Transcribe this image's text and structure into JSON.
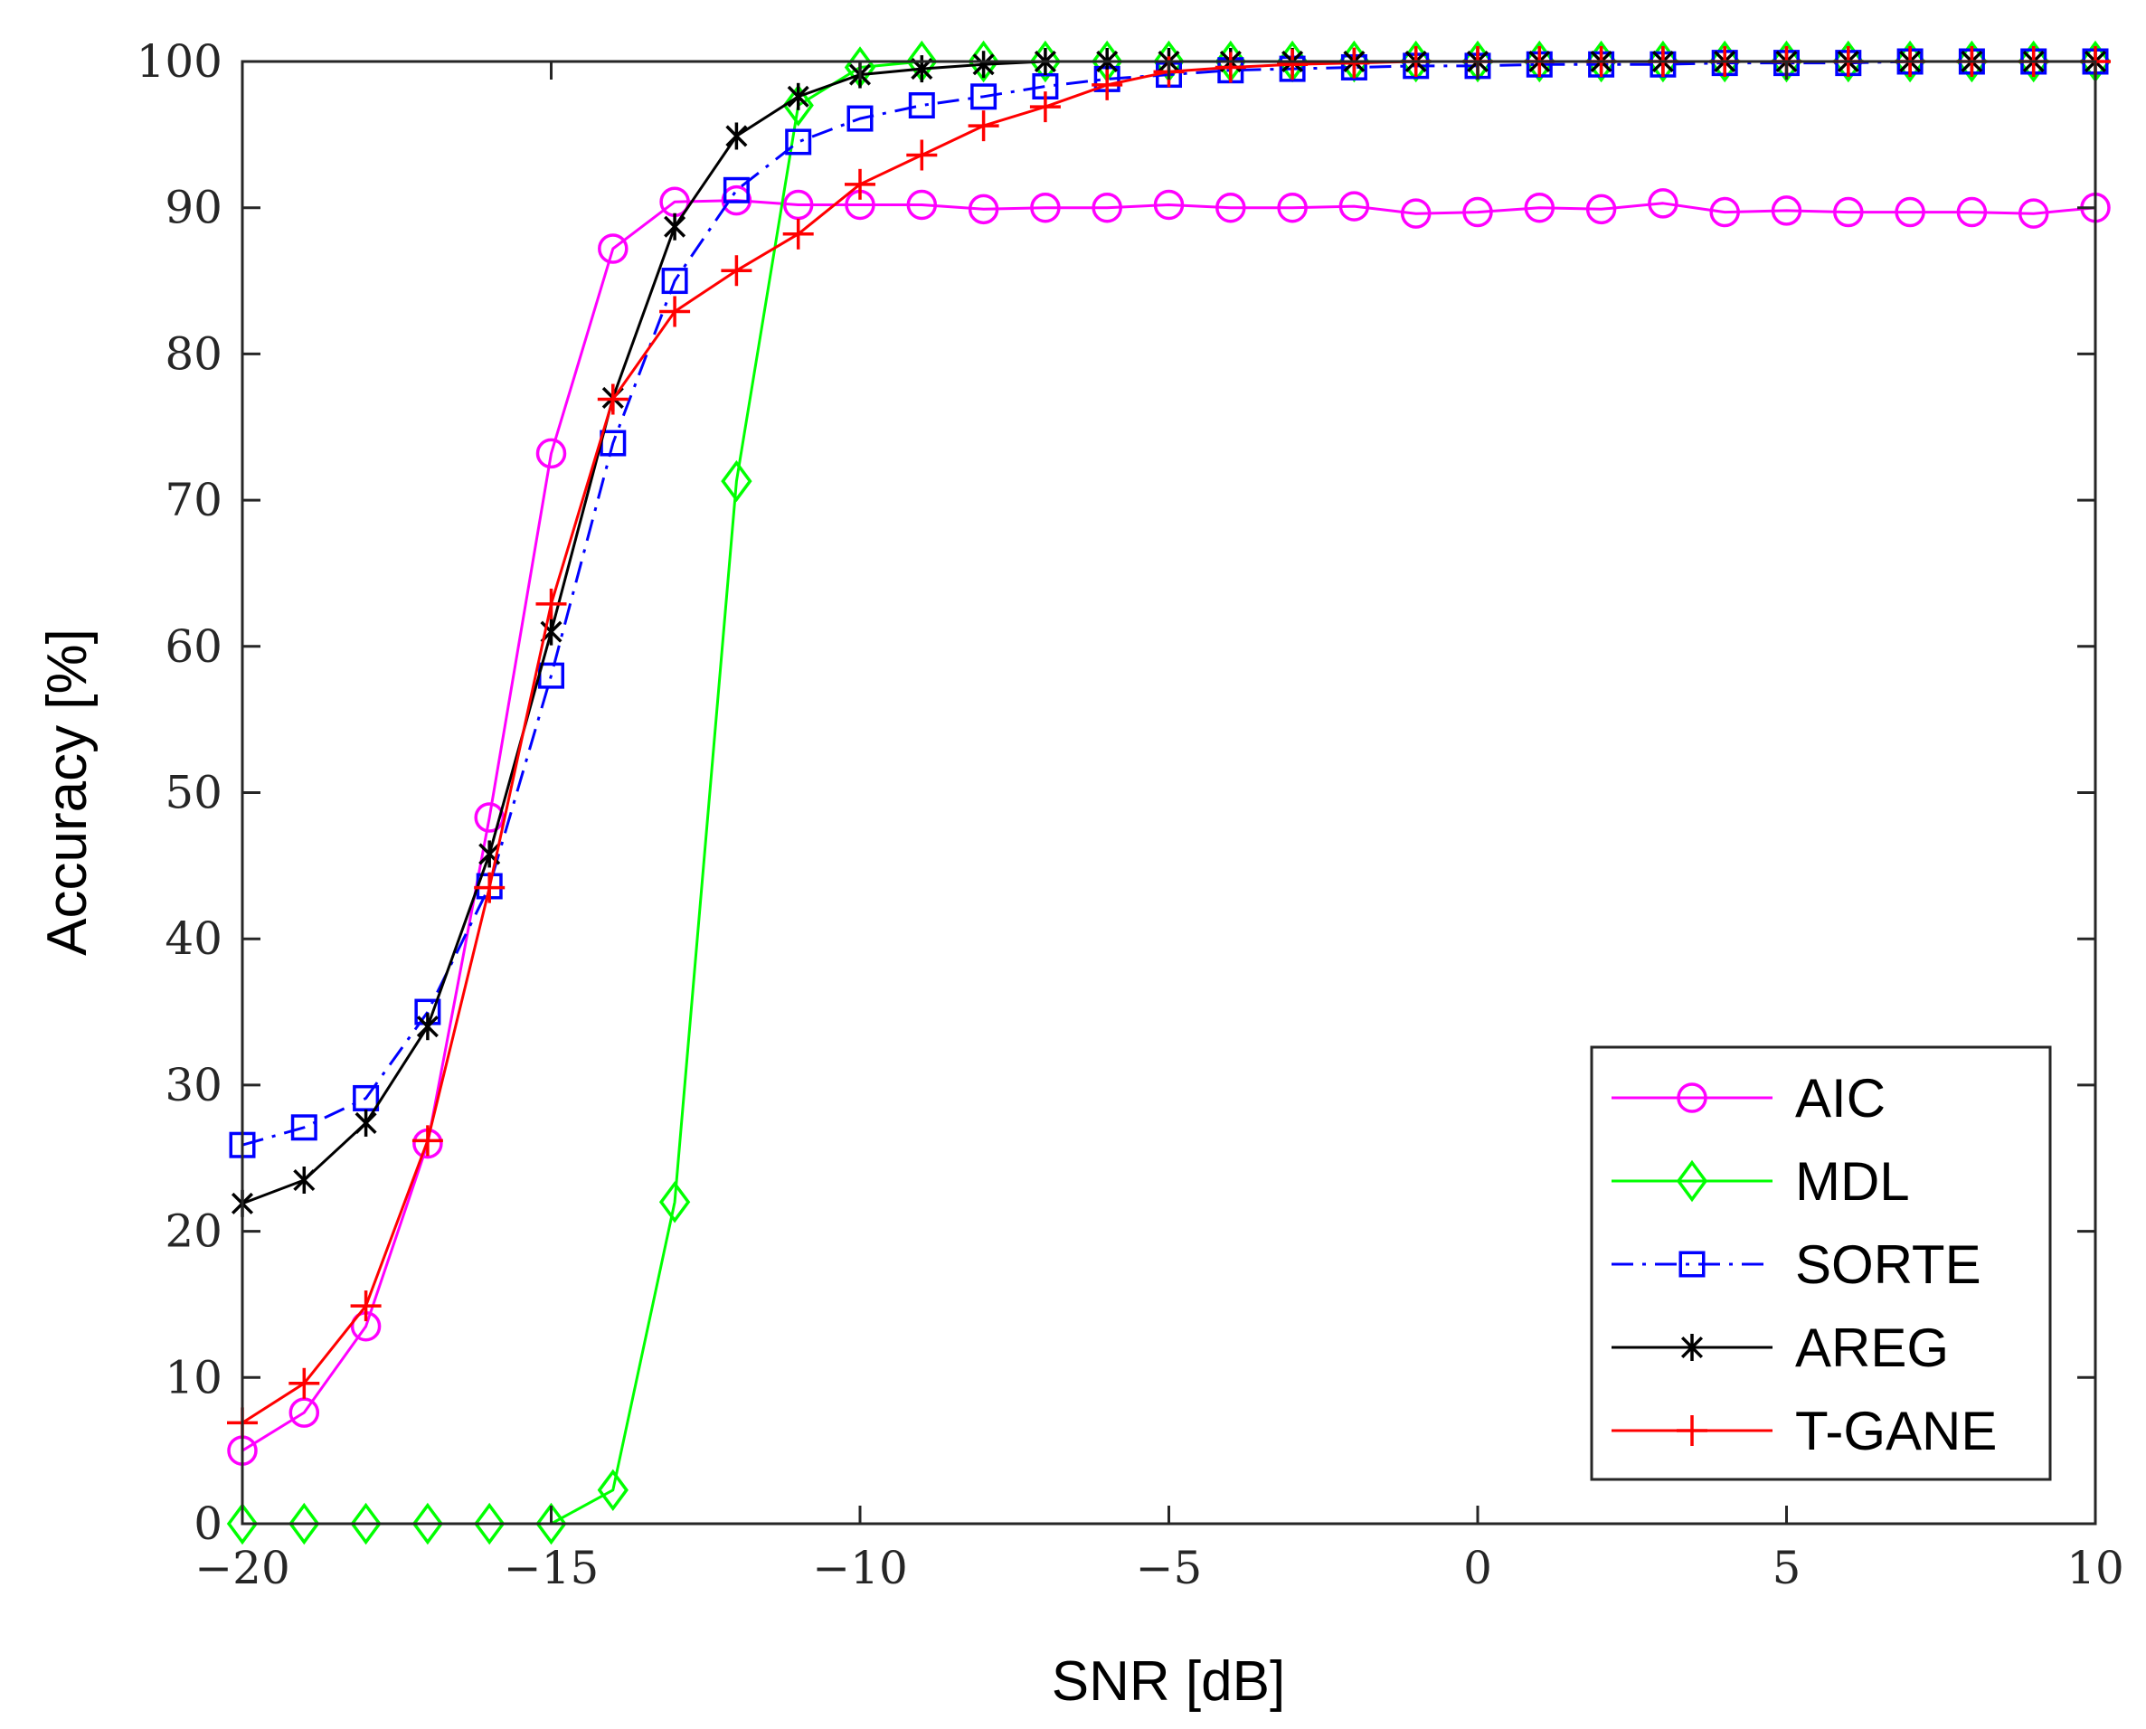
{
  "chart_data": {
    "type": "line",
    "title": "",
    "xlabel": "SNR [dB]",
    "ylabel": "Accuracy [%]",
    "xlim": [
      -20,
      10
    ],
    "ylim": [
      0,
      100
    ],
    "grid": false,
    "legend_position": "bottom-right",
    "x_ticks": [
      -20,
      -15,
      -10,
      -5,
      0,
      5,
      10
    ],
    "x_tick_labels": [
      "−20",
      "−15",
      "−10",
      "−5",
      "0",
      "5",
      "10"
    ],
    "y_ticks": [
      0,
      10,
      20,
      30,
      40,
      50,
      60,
      70,
      80,
      90,
      100
    ],
    "y_tick_labels": [
      "0",
      "10",
      "20",
      "30",
      "40",
      "50",
      "60",
      "70",
      "80",
      "90",
      "100"
    ],
    "x": [
      -20,
      -19,
      -18,
      -17,
      -16,
      -15,
      -14,
      -13,
      -12,
      -11,
      -10,
      -9,
      -8,
      -7,
      -6,
      -5,
      -4,
      -3,
      -2,
      -1,
      0,
      1,
      2,
      3,
      4,
      5,
      6,
      7,
      8,
      9,
      10
    ],
    "series": [
      {
        "name": "AIC",
        "color": "#ff00ff",
        "marker": "circle",
        "dash": "solid",
        "values": [
          5.0,
          7.6,
          13.5,
          26.0,
          48.3,
          73.2,
          87.2,
          90.4,
          90.5,
          90.2,
          90.2,
          90.2,
          89.9,
          90.0,
          90.0,
          90.2,
          90.0,
          90.0,
          90.1,
          89.6,
          89.7,
          90.0,
          89.9,
          90.3,
          89.7,
          89.8,
          89.7,
          89.7,
          89.7,
          89.6,
          90.0
        ]
      },
      {
        "name": "MDL",
        "color": "#00ff00",
        "marker": "diamond",
        "dash": "solid",
        "values": [
          0,
          0,
          0,
          0,
          0,
          0,
          2.3,
          22.0,
          71.3,
          97.0,
          99.6,
          100,
          100,
          100,
          100,
          100,
          100,
          100,
          100,
          100,
          100,
          100,
          100,
          100,
          100,
          100,
          100,
          100,
          100,
          100,
          100
        ]
      },
      {
        "name": "SORTE",
        "color": "#0000ff",
        "marker": "square",
        "dash": "dashdot",
        "values": [
          25.9,
          27.1,
          29.1,
          35.0,
          43.6,
          58.0,
          73.9,
          85.0,
          91.2,
          94.5,
          96.1,
          97.0,
          97.6,
          98.3,
          98.8,
          99.1,
          99.4,
          99.5,
          99.6,
          99.7,
          99.7,
          99.8,
          99.8,
          99.8,
          99.9,
          99.9,
          99.9,
          100,
          100,
          100,
          100
        ]
      },
      {
        "name": "AREG",
        "color": "#000000",
        "marker": "asterisk",
        "dash": "solid",
        "values": [
          21.9,
          23.5,
          27.4,
          34.0,
          45.8,
          61.0,
          77.0,
          88.7,
          94.9,
          97.6,
          99.1,
          99.5,
          99.8,
          100,
          100,
          100,
          100,
          100,
          100,
          100,
          100,
          100,
          100,
          100,
          100,
          100,
          100,
          100,
          100,
          100,
          100
        ]
      },
      {
        "name": "T-GANE",
        "color": "#ff0000",
        "marker": "plus",
        "dash": "solid",
        "values": [
          6.9,
          9.6,
          14.9,
          26.2,
          43.5,
          62.9,
          76.9,
          82.9,
          85.7,
          88.2,
          91.6,
          93.6,
          95.6,
          96.9,
          98.4,
          99.3,
          99.6,
          99.8,
          99.9,
          100,
          100,
          100,
          100,
          100,
          100,
          100,
          100,
          100,
          100,
          100,
          100
        ]
      }
    ]
  }
}
